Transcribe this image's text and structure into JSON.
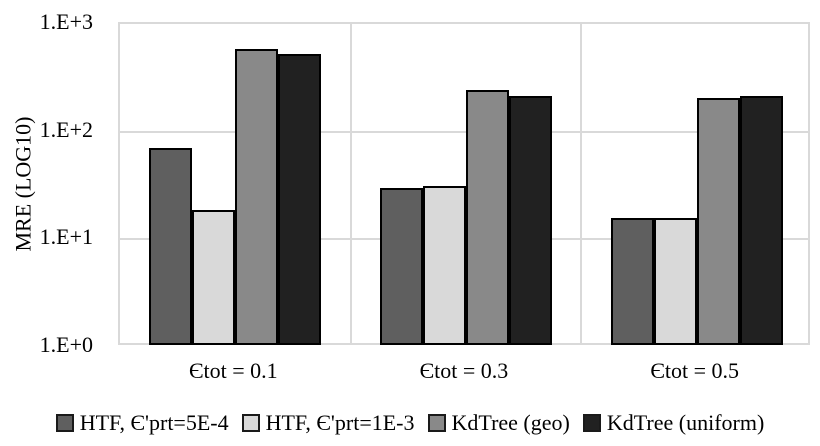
{
  "chart_data": {
    "type": "bar",
    "title": "",
    "xlabel": "",
    "ylabel": "MRE (LOG10)",
    "y_scale": "log10",
    "ylim": [
      1,
      1000
    ],
    "yticks": [
      {
        "label": "1.E+3",
        "exp": 3
      },
      {
        "label": "1.E+2",
        "exp": 2
      },
      {
        "label": "1.E+1",
        "exp": 1
      },
      {
        "label": "1.E+0",
        "exp": 0
      }
    ],
    "categories": [
      "Єtot = 0.1",
      "Єtot = 0.3",
      "Єtot = 0.5"
    ],
    "series": [
      {
        "name": "HTF, Є'prt=5E-4",
        "color": "#5f5f5f",
        "values": [
          68,
          29,
          15
        ]
      },
      {
        "name": "HTF, Є'prt=1E-3",
        "color": "#d9d9d9",
        "values": [
          18,
          30,
          15
        ]
      },
      {
        "name": "KdTree (geo)",
        "color": "#898989",
        "values": [
          560,
          235,
          195
        ]
      },
      {
        "name": "KdTree (uniform)",
        "color": "#212121",
        "values": [
          500,
          205,
          205
        ]
      }
    ],
    "legend_position": "bottom",
    "grid": {
      "horizontal": true,
      "vertical_separators": true,
      "color": "#d9d9d9"
    }
  },
  "colors": {
    "background": "#ffffff",
    "bar_border": "#000000",
    "grid": "#d9d9d9",
    "text": "#000000"
  }
}
